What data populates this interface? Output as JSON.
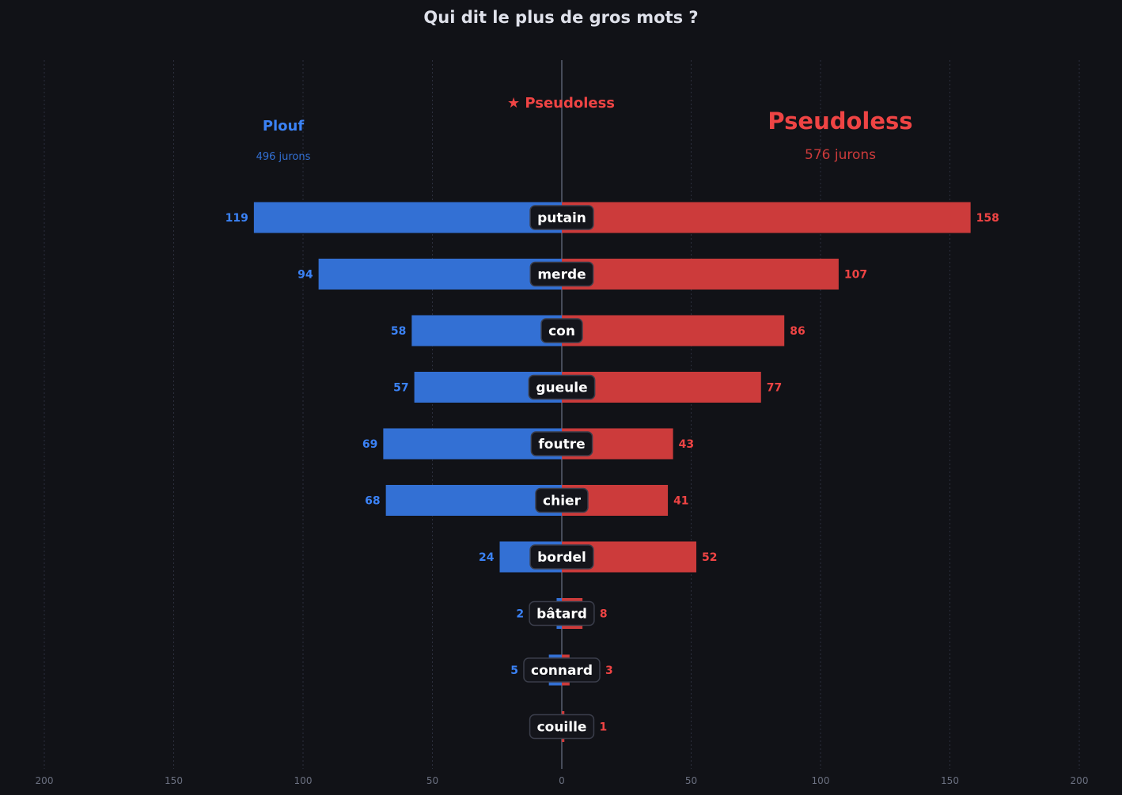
{
  "chart_data": {
    "type": "bar",
    "orientation": "horizontal-diverging",
    "title": "Qui dit le plus de gros mots ?",
    "categories": [
      "putain",
      "merde",
      "con",
      "gueule",
      "foutre",
      "chier",
      "bordel",
      "bâtard",
      "connard",
      "couille"
    ],
    "series": [
      {
        "name": "Plouf",
        "side": "left",
        "color": "#3370d4",
        "label_color": "#3b82f6",
        "total_label": "496 jurons",
        "values": [
          119,
          94,
          58,
          57,
          69,
          68,
          24,
          2,
          5,
          0
        ]
      },
      {
        "name": "Pseudoless",
        "side": "right",
        "color": "#cc3b3b",
        "label_color": "#ef4444",
        "total_label": "576 jurons",
        "values": [
          158,
          107,
          86,
          77,
          43,
          41,
          52,
          8,
          3,
          1
        ]
      }
    ],
    "winner_label": "★ Pseudoless",
    "xlim": [
      -200,
      200
    ],
    "xticks": [
      -200,
      -150,
      -100,
      -50,
      0,
      50,
      100,
      150,
      200
    ],
    "xtick_labels": [
      "200",
      "150",
      "100",
      "50",
      "0",
      "50",
      "100",
      "150",
      "200"
    ],
    "grid": true,
    "background": "#111217"
  }
}
